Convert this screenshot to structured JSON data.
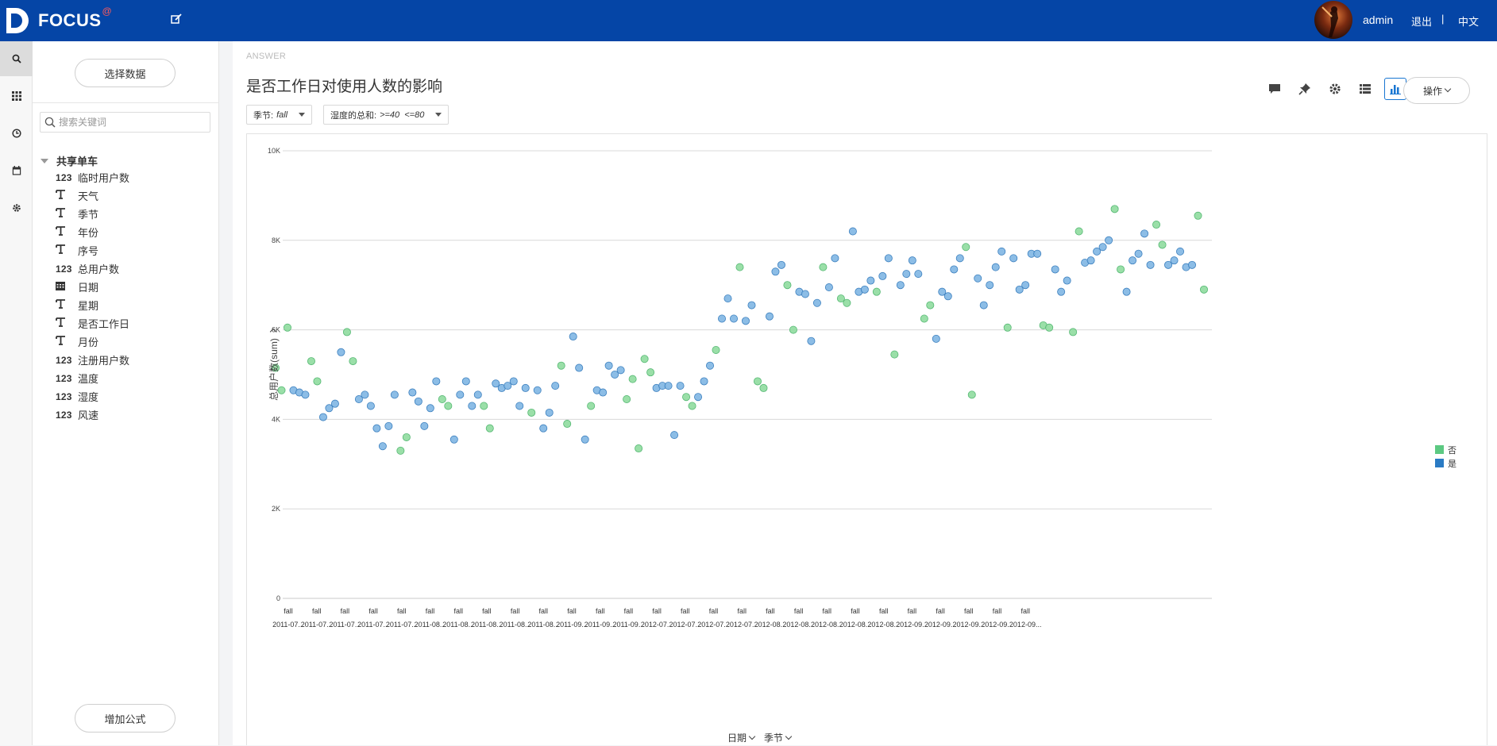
{
  "header": {
    "logo_text": "FOCUS",
    "logo_sup": "@",
    "username": "admin",
    "logout": "退出",
    "separator": "|",
    "language": "中文"
  },
  "rail": {
    "items": [
      "search-icon",
      "grid-icon",
      "clock-icon",
      "calendar-icon",
      "gear-icon"
    ]
  },
  "data_panel": {
    "select_data_button": "选择数据",
    "search_placeholder": "搜索关键词",
    "table_name": "共享单车",
    "fields": [
      {
        "type": "123",
        "label": "临时用户数"
      },
      {
        "type": "T",
        "label": "天气"
      },
      {
        "type": "T",
        "label": "季节"
      },
      {
        "type": "T",
        "label": "年份"
      },
      {
        "type": "T",
        "label": "序号"
      },
      {
        "type": "123",
        "label": "总用户数"
      },
      {
        "type": "date",
        "label": "日期"
      },
      {
        "type": "T",
        "label": "星期"
      },
      {
        "type": "T",
        "label": "是否工作日"
      },
      {
        "type": "T",
        "label": "月份"
      },
      {
        "type": "123",
        "label": "注册用户数"
      },
      {
        "type": "123",
        "label": "温度"
      },
      {
        "type": "123",
        "label": "湿度"
      },
      {
        "type": "123",
        "label": "风速"
      }
    ],
    "add_formula_button": "增加公式"
  },
  "answer": {
    "label": "ANSWER",
    "title": "是否工作日对使用人数的影响",
    "filters": [
      {
        "name": "季节:",
        "value": "fall"
      },
      {
        "name": "湿度的总和:",
        "value": ">=40  <=80"
      }
    ],
    "tools": [
      "comment-icon",
      "pin-icon",
      "settings-icon",
      "table-view-icon",
      "chart-view-icon"
    ],
    "ops_button": "操作"
  },
  "colors": {
    "header_bg": "#0545a6",
    "series_no": "#8fdc9f",
    "series_yes": "#7fb6e3",
    "legend_no": "#5cc982",
    "legend_yes": "#2a7bc4"
  },
  "chart_data": {
    "type": "scatter",
    "title": "",
    "ylabel": "总用户数(sum)",
    "x_dropdowns": [
      "日期",
      "季节"
    ],
    "ylim": [
      0,
      10000
    ],
    "yticks": [
      "0",
      "2K",
      "4K",
      "6K",
      "8K",
      "10K"
    ],
    "x_tick_labels": [
      {
        "season": "fall",
        "date": "2011-07..."
      },
      {
        "season": "fall",
        "date": "2011-07..."
      },
      {
        "season": "fall",
        "date": "2011-07..."
      },
      {
        "season": "fall",
        "date": "2011-07..."
      },
      {
        "season": "fall",
        "date": "2011-07..."
      },
      {
        "season": "fall",
        "date": "2011-08..."
      },
      {
        "season": "fall",
        "date": "2011-08..."
      },
      {
        "season": "fall",
        "date": "2011-08..."
      },
      {
        "season": "fall",
        "date": "2011-08..."
      },
      {
        "season": "fall",
        "date": "2011-08..."
      },
      {
        "season": "fall",
        "date": "2011-09..."
      },
      {
        "season": "fall",
        "date": "2011-09..."
      },
      {
        "season": "fall",
        "date": "2011-09..."
      },
      {
        "season": "fall",
        "date": "2012-07..."
      },
      {
        "season": "fall",
        "date": "2012-07..."
      },
      {
        "season": "fall",
        "date": "2012-07..."
      },
      {
        "season": "fall",
        "date": "2012-07..."
      },
      {
        "season": "fall",
        "date": "2012-08..."
      },
      {
        "season": "fall",
        "date": "2012-08..."
      },
      {
        "season": "fall",
        "date": "2012-08..."
      },
      {
        "season": "fall",
        "date": "2012-08..."
      },
      {
        "season": "fall",
        "date": "2012-08..."
      },
      {
        "season": "fall",
        "date": "2012-09..."
      },
      {
        "season": "fall",
        "date": "2012-09..."
      },
      {
        "season": "fall",
        "date": "2012-09..."
      },
      {
        "season": "fall",
        "date": "2012-09..."
      },
      {
        "season": "fall",
        "date": "2012-09..."
      }
    ],
    "legend": [
      "否",
      "是"
    ],
    "series": [
      {
        "name": "否",
        "points": [
          [
            0,
            5150
          ],
          [
            1,
            4650
          ],
          [
            2,
            6050
          ],
          [
            6,
            5300
          ],
          [
            7,
            4850
          ],
          [
            12,
            5950
          ],
          [
            13,
            5300
          ],
          [
            21,
            3300
          ],
          [
            22,
            3600
          ],
          [
            28,
            4450
          ],
          [
            29,
            4300
          ],
          [
            35,
            4300
          ],
          [
            36,
            3800
          ],
          [
            43,
            4150
          ],
          [
            48,
            5200
          ],
          [
            49,
            3900
          ],
          [
            53,
            4300
          ],
          [
            59,
            4450
          ],
          [
            60,
            4900
          ],
          [
            61,
            3350
          ],
          [
            62,
            5350
          ],
          [
            63,
            5050
          ],
          [
            69,
            4500
          ],
          [
            70,
            4300
          ],
          [
            74,
            5550
          ],
          [
            78,
            7400
          ],
          [
            81,
            4850
          ],
          [
            82,
            4700
          ],
          [
            86,
            7000
          ],
          [
            87,
            6000
          ],
          [
            92,
            7400
          ],
          [
            95,
            6700
          ],
          [
            96,
            6600
          ],
          [
            101,
            6850
          ],
          [
            104,
            5450
          ],
          [
            109,
            6250
          ],
          [
            110,
            6550
          ],
          [
            116,
            7850
          ],
          [
            117,
            4550
          ],
          [
            123,
            6050
          ],
          [
            129,
            6100
          ],
          [
            130,
            6050
          ],
          [
            134,
            5950
          ],
          [
            135,
            8200
          ],
          [
            141,
            8700
          ],
          [
            142,
            7350
          ],
          [
            148,
            8350
          ],
          [
            149,
            7900
          ],
          [
            155,
            8550
          ],
          [
            156,
            6900
          ]
        ]
      },
      {
        "name": "是",
        "points": [
          [
            3,
            4650
          ],
          [
            4,
            4600
          ],
          [
            5,
            4550
          ],
          [
            8,
            4050
          ],
          [
            9,
            4250
          ],
          [
            10,
            4350
          ],
          [
            11,
            5500
          ],
          [
            14,
            4450
          ],
          [
            15,
            4550
          ],
          [
            16,
            4300
          ],
          [
            17,
            3800
          ],
          [
            18,
            3400
          ],
          [
            19,
            3850
          ],
          [
            20,
            4550
          ],
          [
            23,
            4600
          ],
          [
            24,
            4400
          ],
          [
            25,
            3850
          ],
          [
            26,
            4250
          ],
          [
            27,
            4850
          ],
          [
            30,
            3550
          ],
          [
            31,
            4550
          ],
          [
            32,
            4850
          ],
          [
            33,
            4300
          ],
          [
            34,
            4550
          ],
          [
            37,
            4800
          ],
          [
            38,
            4700
          ],
          [
            39,
            4750
          ],
          [
            40,
            4850
          ],
          [
            41,
            4300
          ],
          [
            42,
            4700
          ],
          [
            44,
            4650
          ],
          [
            45,
            3800
          ],
          [
            46,
            4150
          ],
          [
            47,
            4750
          ],
          [
            50,
            5850
          ],
          [
            51,
            5150
          ],
          [
            52,
            3550
          ],
          [
            54,
            4650
          ],
          [
            55,
            4600
          ],
          [
            56,
            5200
          ],
          [
            57,
            5000
          ],
          [
            58,
            5100
          ],
          [
            64,
            4700
          ],
          [
            65,
            4750
          ],
          [
            66,
            4750
          ],
          [
            67,
            3650
          ],
          [
            68,
            4750
          ],
          [
            71,
            4500
          ],
          [
            72,
            4850
          ],
          [
            73,
            5200
          ],
          [
            75,
            6250
          ],
          [
            76,
            6700
          ],
          [
            77,
            6250
          ],
          [
            79,
            6200
          ],
          [
            80,
            6550
          ],
          [
            83,
            6300
          ],
          [
            84,
            7300
          ],
          [
            85,
            7450
          ],
          [
            88,
            6850
          ],
          [
            89,
            6800
          ],
          [
            90,
            5750
          ],
          [
            91,
            6600
          ],
          [
            93,
            6950
          ],
          [
            94,
            7600
          ],
          [
            97,
            8200
          ],
          [
            98,
            6850
          ],
          [
            99,
            6900
          ],
          [
            100,
            7100
          ],
          [
            102,
            7200
          ],
          [
            103,
            7600
          ],
          [
            105,
            7000
          ],
          [
            106,
            7250
          ],
          [
            107,
            7550
          ],
          [
            108,
            7250
          ],
          [
            111,
            5800
          ],
          [
            112,
            6850
          ],
          [
            113,
            6750
          ],
          [
            114,
            7350
          ],
          [
            115,
            7600
          ],
          [
            118,
            7150
          ],
          [
            119,
            6550
          ],
          [
            120,
            7000
          ],
          [
            121,
            7400
          ],
          [
            122,
            7750
          ],
          [
            124,
            7600
          ],
          [
            125,
            6900
          ],
          [
            126,
            7000
          ],
          [
            127,
            7700
          ],
          [
            128,
            7700
          ],
          [
            131,
            7350
          ],
          [
            132,
            6850
          ],
          [
            133,
            7100
          ],
          [
            136,
            7500
          ],
          [
            137,
            7550
          ],
          [
            138,
            7750
          ],
          [
            139,
            7850
          ],
          [
            140,
            8000
          ],
          [
            143,
            6850
          ],
          [
            144,
            7550
          ],
          [
            145,
            7700
          ],
          [
            146,
            8150
          ],
          [
            147,
            7450
          ],
          [
            150,
            7450
          ],
          [
            151,
            7550
          ],
          [
            152,
            7750
          ],
          [
            153,
            7400
          ],
          [
            154,
            7450
          ]
        ]
      }
    ]
  }
}
